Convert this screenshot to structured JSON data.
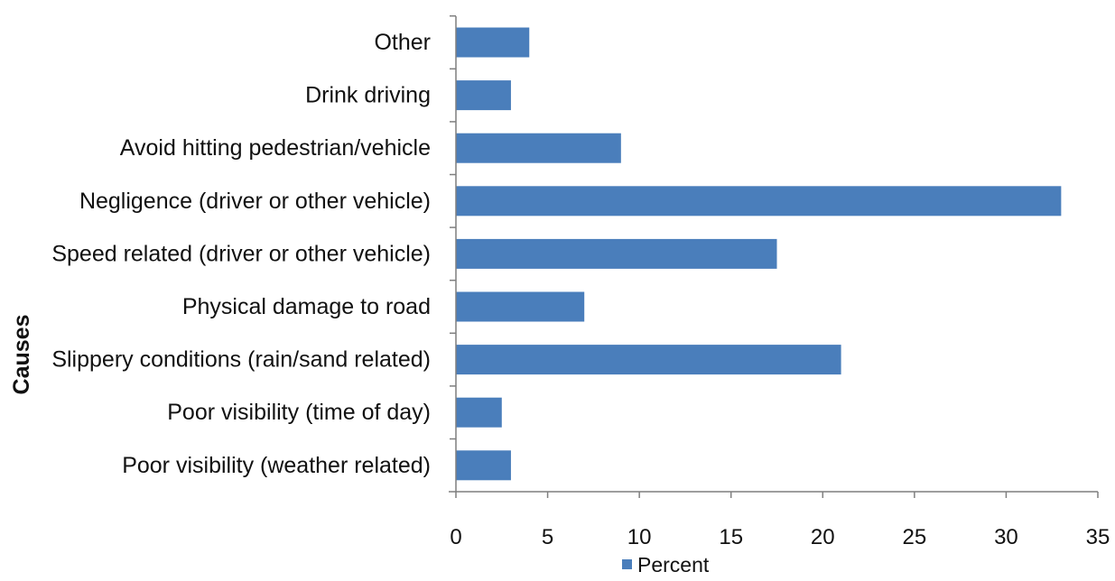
{
  "chart_data": {
    "type": "bar",
    "orientation": "horizontal",
    "categories": [
      "Other",
      "Drink driving",
      "Avoid hitting pedestrian/vehicle",
      "Negligence (driver or other vehicle)",
      "Speed related  (driver or other vehicle)",
      "Physical damage to road",
      "Slippery conditions (rain/sand related)",
      "Poor visibility (time of day)",
      "Poor visibility (weather related)"
    ],
    "series": [
      {
        "name": "Percent",
        "values": [
          4,
          3,
          9,
          33,
          17.5,
          7,
          21,
          2.5,
          3
        ],
        "color": "#4a7ebb"
      }
    ],
    "xlim": [
      0,
      35
    ],
    "xticks": [
      "0",
      "5",
      "10",
      "15",
      "20",
      "25",
      "30",
      "35"
    ],
    "ylabel": "Causes",
    "xlabel": "",
    "title": "",
    "grid": false,
    "legend": {
      "position": "bottom",
      "label": "Percent"
    }
  }
}
